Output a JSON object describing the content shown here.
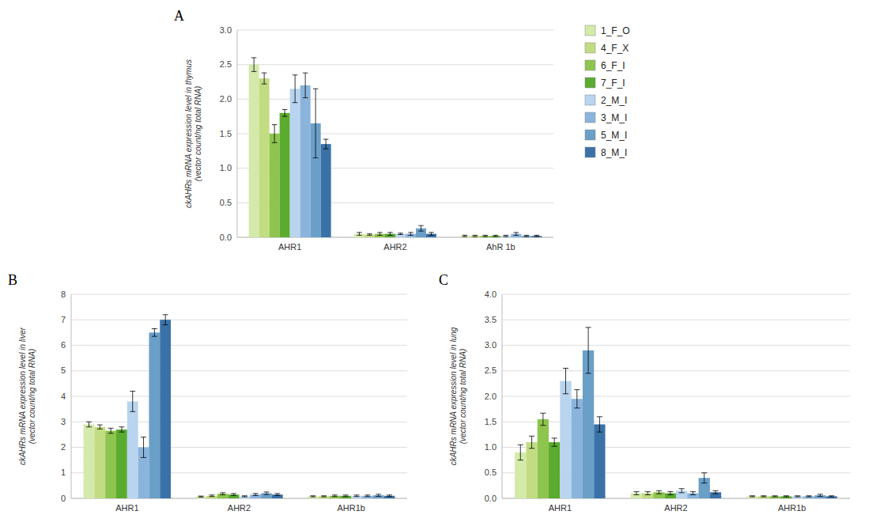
{
  "chart_data": [
    {
      "type": "bar",
      "title": "A",
      "y_label": "ckAHRs mRNA expression level in thymus\n(vector count/ng total RNA)",
      "categories": [
        "AHR1",
        "AHR2",
        "AhR 1b"
      ],
      "series": [
        {
          "name": "1_F_O",
          "color": "#d4eaaa",
          "values": [
            2.5,
            0.05,
            0.02
          ],
          "errors": [
            0.1,
            0.02,
            0.01
          ]
        },
        {
          "name": "4_F_X",
          "color": "#c2dc82",
          "values": [
            2.3,
            0.04,
            0.02
          ],
          "errors": [
            0.08,
            0.01,
            0.01
          ]
        },
        {
          "name": "6_F_I",
          "color": "#8dc54e",
          "values": [
            1.5,
            0.05,
            0.02
          ],
          "errors": [
            0.13,
            0.02,
            0.01
          ]
        },
        {
          "name": "7_F_I",
          "color": "#5aab2e",
          "values": [
            1.8,
            0.05,
            0.02
          ],
          "errors": [
            0.05,
            0.02,
            0.01
          ]
        },
        {
          "name": "2_M_I",
          "color": "#b8d4ee",
          "values": [
            2.15,
            0.05,
            0.02
          ],
          "errors": [
            0.2,
            0.01,
            0.01
          ]
        },
        {
          "name": "3_M_I",
          "color": "#8ab4dc",
          "values": [
            2.2,
            0.05,
            0.05
          ],
          "errors": [
            0.18,
            0.02,
            0.02
          ]
        },
        {
          "name": "5_M_I",
          "color": "#6a9fc8",
          "values": [
            1.65,
            0.13,
            0.02
          ],
          "errors": [
            0.5,
            0.04,
            0.01
          ]
        },
        {
          "name": "8_M_I",
          "color": "#3a72a8",
          "values": [
            1.35,
            0.05,
            0.02
          ],
          "errors": [
            0.07,
            0.02,
            0.01
          ]
        }
      ],
      "ylim": [
        0,
        3
      ],
      "yticks": [
        {
          "value": 0,
          "label": "0.0"
        },
        0.5,
        {
          "value": 1,
          "label": "1.0"
        },
        1.5,
        {
          "value": 2,
          "label": "2.0"
        },
        2.5,
        {
          "value": 3,
          "label": "3.0"
        }
      ],
      "grid": true,
      "legend": "right"
    },
    {
      "type": "bar",
      "title": "B",
      "y_label": "ckAHRs mRNA expression level in liver\n(vector count/ng total RNA)",
      "categories": [
        "AHR1",
        "AHR2",
        "AHR1b"
      ],
      "series": [
        {
          "color": "#d4eaaa",
          "values": [
            2.9,
            0.07,
            0.08
          ],
          "errors": [
            0.1,
            0.02,
            0.02
          ]
        },
        {
          "color": "#c2dc82",
          "values": [
            2.8,
            0.1,
            0.08
          ],
          "errors": [
            0.08,
            0.03,
            0.02
          ]
        },
        {
          "color": "#8dc54e",
          "values": [
            2.65,
            0.18,
            0.1
          ],
          "errors": [
            0.1,
            0.04,
            0.03
          ]
        },
        {
          "color": "#5aab2e",
          "values": [
            2.7,
            0.15,
            0.1
          ],
          "errors": [
            0.1,
            0.04,
            0.03
          ]
        },
        {
          "color": "#b8d4ee",
          "values": [
            3.8,
            0.08,
            0.1
          ],
          "errors": [
            0.4,
            0.02,
            0.03
          ]
        },
        {
          "color": "#8ab4dc",
          "values": [
            2.0,
            0.15,
            0.1
          ],
          "errors": [
            0.4,
            0.04,
            0.03
          ]
        },
        {
          "color": "#6a9fc8",
          "values": [
            6.5,
            0.2,
            0.12
          ],
          "errors": [
            0.15,
            0.05,
            0.04
          ]
        },
        {
          "color": "#3a72a8",
          "values": [
            7.0,
            0.15,
            0.1
          ],
          "errors": [
            0.2,
            0.04,
            0.03
          ]
        }
      ],
      "ylim": [
        0,
        8
      ],
      "yticks": [
        0,
        1,
        2,
        3,
        4,
        5,
        6,
        7,
        8
      ],
      "grid": true
    },
    {
      "type": "bar",
      "title": "C",
      "y_label": "ckAHRs mRNA expression level in lung\n(vector count/ng total RNA)",
      "categories": [
        "AHR1",
        "AHR2",
        "AHR1b"
      ],
      "series": [
        {
          "color": "#d4eaaa",
          "values": [
            0.9,
            0.1,
            0.04
          ],
          "errors": [
            0.15,
            0.03,
            0.01
          ]
        },
        {
          "color": "#c2dc82",
          "values": [
            1.1,
            0.1,
            0.04
          ],
          "errors": [
            0.12,
            0.03,
            0.01
          ]
        },
        {
          "color": "#8dc54e",
          "values": [
            1.55,
            0.12,
            0.04
          ],
          "errors": [
            0.12,
            0.03,
            0.01
          ]
        },
        {
          "color": "#5aab2e",
          "values": [
            1.1,
            0.1,
            0.04
          ],
          "errors": [
            0.08,
            0.03,
            0.01
          ]
        },
        {
          "color": "#b8d4ee",
          "values": [
            2.3,
            0.15,
            0.04
          ],
          "errors": [
            0.25,
            0.04,
            0.01
          ]
        },
        {
          "color": "#8ab4dc",
          "values": [
            1.95,
            0.1,
            0.04
          ],
          "errors": [
            0.18,
            0.03,
            0.01
          ]
        },
        {
          "color": "#6a9fc8",
          "values": [
            2.9,
            0.4,
            0.06
          ],
          "errors": [
            0.45,
            0.1,
            0.02
          ]
        },
        {
          "color": "#3a72a8",
          "values": [
            1.45,
            0.12,
            0.04
          ],
          "errors": [
            0.15,
            0.03,
            0.01
          ]
        }
      ],
      "ylim": [
        0,
        4
      ],
      "yticks": [
        {
          "value": 0,
          "label": "0.0"
        },
        0.5,
        {
          "value": 1,
          "label": "1.0"
        },
        1.5,
        {
          "value": 2,
          "label": "2.0"
        },
        2.5,
        {
          "value": 3,
          "label": "3.0"
        },
        3.5,
        {
          "value": 4,
          "label": "4.0"
        }
      ],
      "grid": true
    }
  ]
}
